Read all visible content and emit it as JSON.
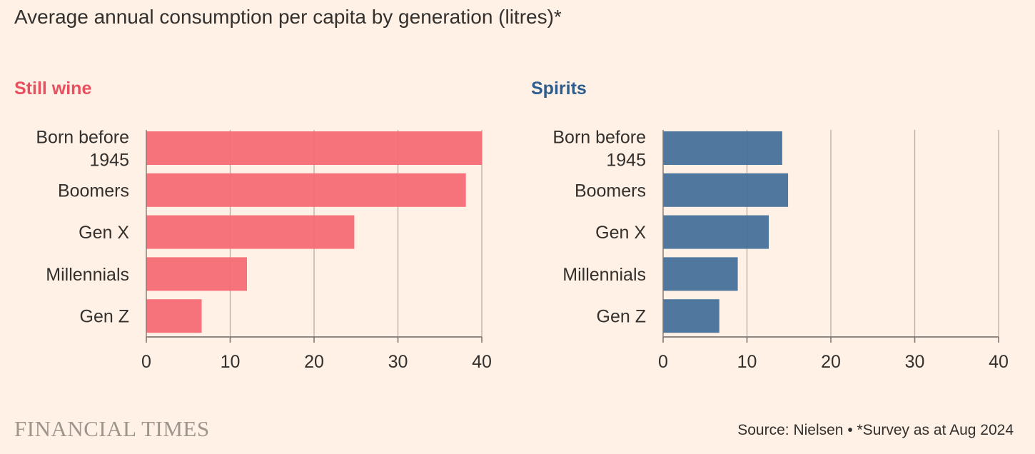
{
  "title": "Average annual consumption per capita by generation (litres)*",
  "brand": "FINANCIAL TIMES",
  "source": "Source: Nielsen • *Survey as at Aug 2024",
  "chart_data": [
    {
      "type": "bar",
      "orientation": "horizontal",
      "title": "Still wine",
      "color": "#f56b76",
      "categories": [
        [
          "Born before",
          "1945"
        ],
        [
          "Boomers"
        ],
        [
          "Gen X"
        ],
        [
          "Millennials"
        ],
        [
          "Gen Z"
        ]
      ],
      "values": [
        40,
        38.1,
        24.8,
        12.0,
        6.6
      ],
      "xlim": [
        0,
        40
      ],
      "xticks": [
        "0",
        "10",
        "20",
        "30",
        "40"
      ],
      "grid": true
    },
    {
      "type": "bar",
      "orientation": "horizontal",
      "title": "Spirits",
      "color": "#477099",
      "categories": [
        [
          "Born before",
          "1945"
        ],
        [
          "Boomers"
        ],
        [
          "Gen X"
        ],
        [
          "Millennials"
        ],
        [
          "Gen Z"
        ]
      ],
      "values": [
        14.2,
        14.9,
        12.6,
        8.9,
        6.7
      ],
      "xlim": [
        0,
        40
      ],
      "xticks": [
        "0",
        "10",
        "20",
        "30",
        "40"
      ],
      "grid": true
    }
  ],
  "colors": {
    "background": "#fff1e5",
    "text": "#33302e",
    "gridline": "#b8aca3",
    "axis": "#807973",
    "wine_title": "#e8505f",
    "spirits_title": "#2d5d8e"
  }
}
